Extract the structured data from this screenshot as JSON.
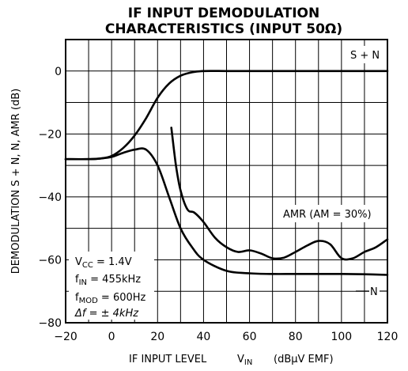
{
  "chart_data": {
    "type": "line",
    "title": "IF INPUT DEMODULATION",
    "subtitle": "CHARACTERISTICS (INPUT 50Ω)",
    "xlabel": {
      "text": "IF INPUT LEVEL",
      "var": "V",
      "var_sub": "IN",
      "unit": "(dBμV EMF)"
    },
    "ylabel": "DEMODULATION S + N, N, AMR (dB)",
    "xlim": [
      -20,
      120
    ],
    "ylim": [
      -80,
      10
    ],
    "xticks": [
      "−20",
      "0",
      "20",
      "40",
      "60",
      "80",
      "100",
      "120"
    ],
    "xtick_values": [
      -20,
      0,
      20,
      40,
      60,
      80,
      100,
      120
    ],
    "yticks": [
      "0",
      "−20",
      "−40",
      "−60",
      "−80"
    ],
    "ytick_values": [
      0,
      -20,
      -40,
      -60,
      -80
    ],
    "grid": true,
    "series": [
      {
        "name": "S + N",
        "x": [
          -20,
          -10,
          -5,
          0,
          5,
          10,
          15,
          20,
          25,
          30,
          35,
          40,
          50,
          60,
          80,
          100,
          120
        ],
        "y": [
          -28,
          -28,
          -27.8,
          -27,
          -24.5,
          -20.5,
          -15,
          -8.5,
          -4,
          -1.5,
          -0.4,
          0,
          0,
          0,
          0,
          0,
          0
        ]
      },
      {
        "name": "N",
        "x": [
          -20,
          -10,
          -5,
          0,
          5,
          10,
          15,
          20,
          25,
          30,
          35,
          40,
          50,
          60,
          70,
          80,
          90,
          100,
          110,
          120
        ],
        "y": [
          -28,
          -28,
          -27.8,
          -27.3,
          -26,
          -25,
          -25,
          -30,
          -40,
          -50,
          -56,
          -60,
          -63.5,
          -64.3,
          -64.5,
          -64.5,
          -64.5,
          -64.5,
          -64.6,
          -64.8
        ]
      },
      {
        "name": "AMR (AM = 30%)",
        "x": [
          26,
          28,
          30,
          33,
          36,
          40,
          45,
          50,
          55,
          60,
          65,
          70,
          75,
          80,
          85,
          90,
          95,
          100,
          105,
          110,
          115,
          120
        ],
        "y": [
          -18,
          -30,
          -38,
          -44,
          -45,
          -48,
          -53,
          -56,
          -57.5,
          -57,
          -58,
          -59.5,
          -59.3,
          -57.5,
          -55.5,
          -54,
          -55,
          -59.5,
          -59.5,
          -57.5,
          -56,
          -53.5
        ]
      }
    ],
    "annotations": [
      {
        "text": "VCC = 1.4V",
        "main": "V",
        "sub": "CC",
        "rest": " = 1.4V"
      },
      {
        "text": "fIN = 455kHz",
        "main": "f",
        "sub": "IN",
        "rest": " = 455kHz"
      },
      {
        "text": "fMOD = 600Hz",
        "main": "f",
        "sub": "MOD",
        "rest": " = 600Hz"
      },
      {
        "text": "Δf = ± 4kHz",
        "main": "Δf = ± 4kHz"
      }
    ]
  }
}
